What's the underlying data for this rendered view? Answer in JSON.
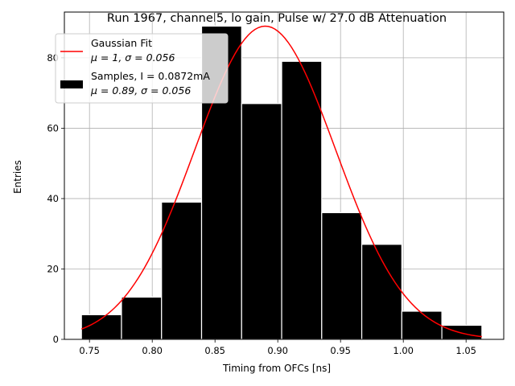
{
  "chart_data": {
    "type": "bar",
    "title": "Run 1967, channel5, lo gain, Pulse w/ 27.0 dB Attenuation",
    "xlabel": "Timing from OFCs [ns]",
    "ylabel": "Entries",
    "xlim": [
      0.73,
      1.08
    ],
    "ylim": [
      0,
      93
    ],
    "grid": true,
    "xticks": [
      0.75,
      0.8,
      0.85,
      0.9,
      0.95,
      1.0,
      1.05
    ],
    "xtick_labels": [
      "0.75",
      "0.80",
      "0.85",
      "0.90",
      "0.95",
      "1.00",
      "1.05"
    ],
    "yticks": [
      0,
      20,
      40,
      60,
      80
    ],
    "ytick_labels": [
      "0",
      "20",
      "40",
      "60",
      "80"
    ],
    "bins": [
      {
        "x0": 0.7436,
        "x1": 0.7755,
        "count": 7
      },
      {
        "x0": 0.7755,
        "x1": 0.8074,
        "count": 12
      },
      {
        "x0": 0.8074,
        "x1": 0.8393,
        "count": 39
      },
      {
        "x0": 0.8393,
        "x1": 0.8712,
        "count": 89
      },
      {
        "x0": 0.8712,
        "x1": 0.9031,
        "count": 67
      },
      {
        "x0": 0.9031,
        "x1": 0.935,
        "count": 79
      },
      {
        "x0": 0.935,
        "x1": 0.9669,
        "count": 36
      },
      {
        "x0": 0.9669,
        "x1": 0.9988,
        "count": 27
      },
      {
        "x0": 0.9988,
        "x1": 1.0307,
        "count": 8
      },
      {
        "x0": 1.0307,
        "x1": 1.0626,
        "count": 4
      }
    ],
    "fit": {
      "mean": 0.89,
      "sigma": 0.056,
      "amplitude": 89,
      "xmin": 0.7436,
      "xmax": 1.0626
    },
    "series": [
      {
        "name": "Samples, I = 0.0872mA",
        "stats": "μ = 0.89, σ = 0.056",
        "color": "#000000"
      },
      {
        "name": "Gaussian Fit",
        "stats": "μ = 1, σ = 0.056",
        "color": "#ff0000"
      }
    ],
    "legend": {
      "placement": "upper-left",
      "fit_line1": "Gaussian Fit",
      "fit_line2": "μ = 1, σ = 0.056",
      "samples_line1": "Samples, I = 0.0872mA",
      "samples_line2": "μ = 0.89, σ = 0.056"
    }
  }
}
